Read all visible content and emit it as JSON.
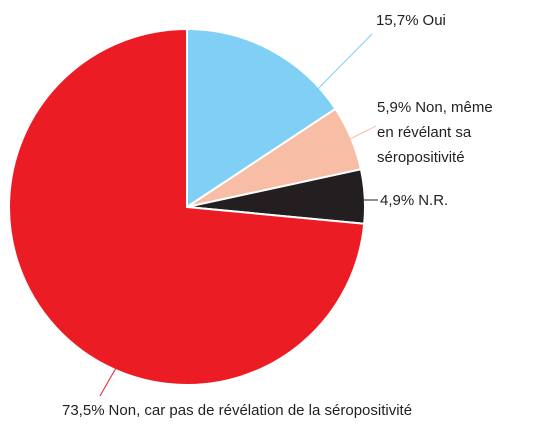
{
  "chart_data": {
    "type": "pie",
    "categories": [
      "Oui",
      "Non, même en révélant sa séropositivité",
      "N.R.",
      "Non, car pas de révélation de la séropositivité"
    ],
    "values": [
      15.7,
      5.9,
      4.9,
      73.5
    ],
    "value_labels": [
      "15,7%",
      "5,9%",
      "4,9%",
      "73,5%"
    ],
    "colors": [
      "#7fd0f4",
      "#f7bda5",
      "#231f20",
      "#ec1c24"
    ]
  }
}
